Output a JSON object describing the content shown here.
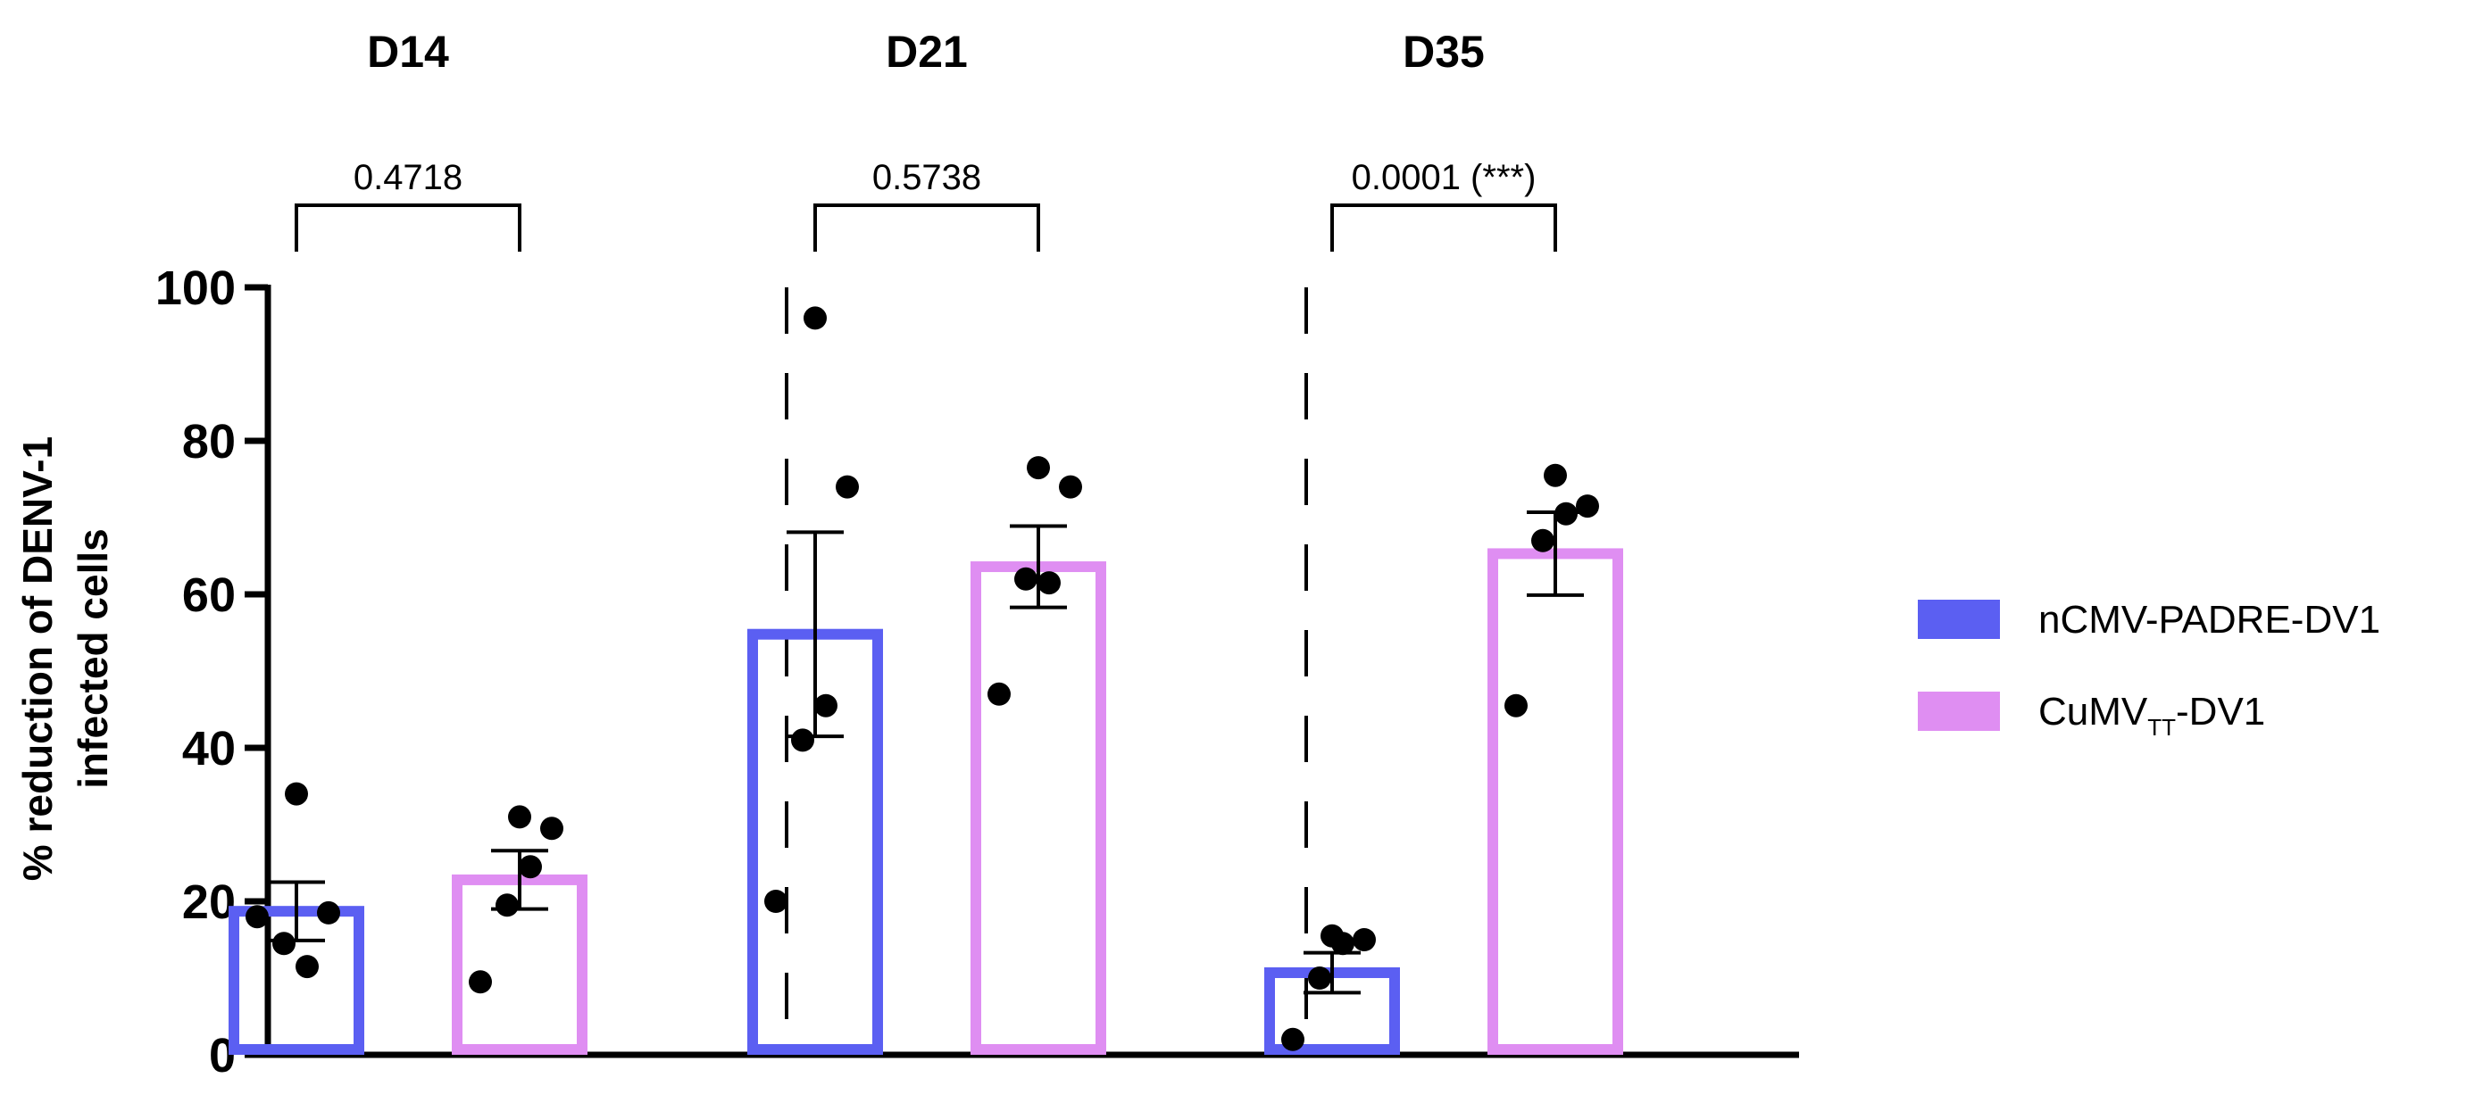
{
  "colors": {
    "series1": "#5b5ff2",
    "series2": "#df8ef2",
    "axis": "#000000",
    "point": "#000000"
  },
  "chart_data": {
    "type": "bar",
    "title": "",
    "xlabel": "",
    "ylabel": "% reduction of  DENV-1 infected cells",
    "ylabel_lines": [
      "% reduction of  DENV-1",
      "infected cells"
    ],
    "ylim": [
      0,
      100
    ],
    "yticks": [
      0,
      20,
      40,
      60,
      80,
      100
    ],
    "yticks_text": [
      "0",
      "20",
      "40",
      "60",
      "80",
      "100"
    ],
    "categories": [
      "D14",
      "D21",
      "D35"
    ],
    "legend_position": "right",
    "series": [
      {
        "name": "nCMV-PADRE-DV1",
        "legend_main": "nCMV-PADRE-DV1",
        "legend_sub": "",
        "legend_suffix": "",
        "values": [
          18.7,
          54.8,
          10.7
        ],
        "sem": [
          3.8,
          13.3,
          2.6
        ],
        "points": [
          [
            18,
            14.5,
            11.5,
            18.5,
            34
          ],
          [
            20,
            41,
            45.5,
            74,
            96
          ],
          [
            2,
            10,
            14.5,
            15,
            15.5
          ]
        ]
      },
      {
        "name": "CuMVTT-DV1",
        "legend_main": "CuMV",
        "legend_sub": "TT",
        "legend_suffix": "-DV1",
        "values": [
          22.8,
          63.6,
          65.3
        ],
        "sem": [
          3.8,
          5.3,
          5.4
        ],
        "points": [
          [
            9.5,
            19.5,
            24.5,
            29.5,
            31
          ],
          [
            47,
            62,
            61.5,
            74,
            76.5
          ],
          [
            45.5,
            67,
            70.5,
            71.5,
            75.5
          ]
        ]
      }
    ],
    "comparisons": [
      {
        "group": "D14",
        "p_value": "0.4718"
      },
      {
        "group": "D21",
        "p_value": "0.5738"
      },
      {
        "group": "D35",
        "p_value": "0.0001 (***)"
      }
    ]
  }
}
